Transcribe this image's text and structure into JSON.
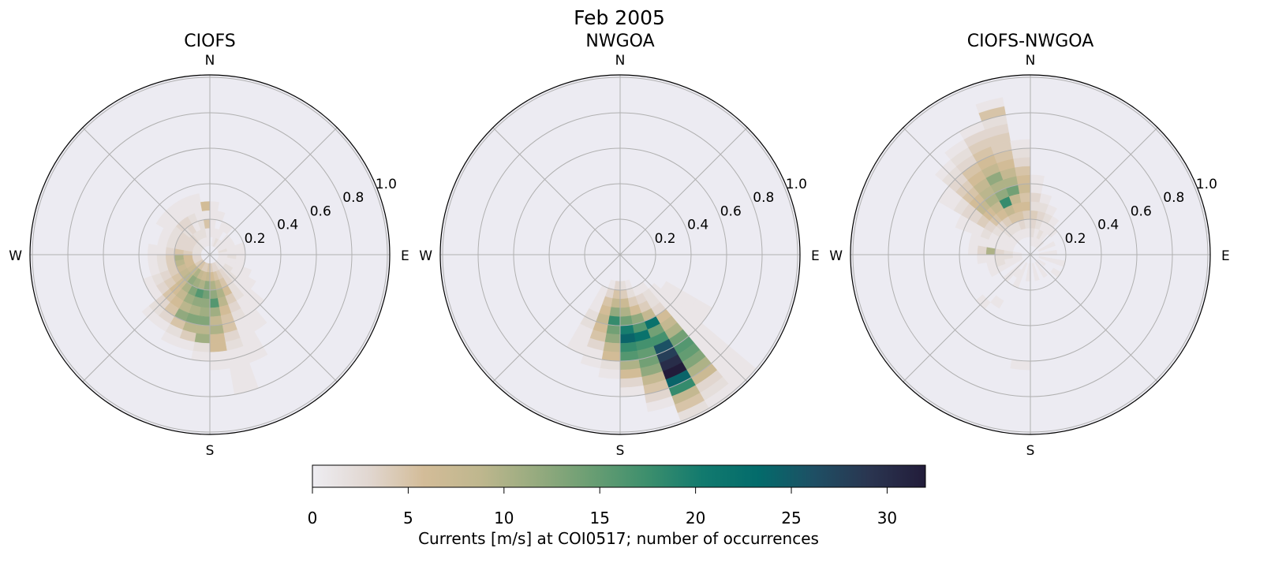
{
  "chart_data": {
    "type": "heatmap",
    "subtype": "polar-histogram",
    "title": "Feb 2005",
    "direction_bin_deg": 10,
    "speed_bin": 0.05,
    "rlim": [
      0,
      1.01
    ],
    "rticks": [
      "0.2",
      "0.4",
      "0.6",
      "0.8",
      "1.0"
    ],
    "rtick_values": [
      0.2,
      0.4,
      0.6,
      0.8,
      1.0
    ],
    "compass_labels": {
      "N": "N",
      "E": "E",
      "S": "S",
      "W": "W"
    },
    "grid": true,
    "colorbar": {
      "label": "Currents [m/s] at COI0517; number of occurrences",
      "range": [
        0,
        32
      ],
      "ticks": [
        0,
        5,
        10,
        15,
        20,
        25,
        30
      ],
      "tick_labels": [
        "0",
        "5",
        "10",
        "15",
        "20",
        "25",
        "30"
      ],
      "colormap": [
        "#eeedf2",
        "#e1d7d1",
        "#d3bc98",
        "#bfb78e",
        "#97ab7f",
        "#6a9e73",
        "#3d8f6d",
        "#127a6e",
        "#036b6b",
        "#1e4f64",
        "#2a3550",
        "#221c3a"
      ]
    },
    "panels": [
      {
        "title": "CIOFS",
        "rows": [
          {
            "dir": 5,
            "counts": [
              0,
              0,
              1,
              1,
              1,
              1
            ]
          },
          {
            "dir": 15,
            "counts": [
              0,
              1,
              1,
              0,
              1
            ]
          },
          {
            "dir": 25,
            "counts": [
              0,
              2,
              1,
              1
            ]
          },
          {
            "dir": 35,
            "counts": [
              0,
              1,
              0,
              1
            ]
          },
          {
            "dir": 45,
            "counts": [
              0,
              1,
              1
            ]
          },
          {
            "dir": 55,
            "counts": [
              0,
              1,
              1
            ]
          },
          {
            "dir": 65,
            "counts": [
              0,
              1,
              1
            ]
          },
          {
            "dir": 75,
            "counts": [
              0,
              2,
              1,
              1
            ]
          },
          {
            "dir": 85,
            "counts": [
              0,
              1,
              1,
              1
            ]
          },
          {
            "dir": 95,
            "counts": [
              0,
              1,
              2,
              1
            ]
          },
          {
            "dir": 105,
            "counts": [
              0,
              1,
              1,
              1
            ]
          },
          {
            "dir": 115,
            "counts": [
              0,
              1,
              1,
              1,
              1
            ]
          },
          {
            "dir": 125,
            "counts": [
              0,
              1,
              2,
              1,
              1,
              1
            ]
          },
          {
            "dir": 135,
            "counts": [
              0,
              1,
              2,
              2,
              1,
              1,
              1,
              1
            ]
          },
          {
            "dir": 145,
            "counts": [
              0,
              2,
              3,
              3,
              2,
              2,
              1,
              1,
              1,
              1
            ]
          },
          {
            "dir": 155,
            "counts": [
              0,
              3,
              4,
              5,
              6,
              4,
              3,
              2,
              1,
              1,
              1,
              1,
              1
            ]
          },
          {
            "dir": 165,
            "counts": [
              0,
              3,
              5,
              8,
              10,
              9,
              6,
              5,
              5,
              3,
              2,
              1,
              1,
              1,
              1,
              1
            ]
          },
          {
            "dir": 175,
            "counts": [
              0,
              4,
              6,
              10,
              12,
              16,
              11,
              8,
              10,
              6,
              6,
              1,
              1
            ]
          },
          {
            "dir": 185,
            "counts": [
              0,
              5,
              8,
              12,
              14,
              12,
              11,
              13,
              9,
              11,
              2,
              1
            ]
          },
          {
            "dir": 195,
            "counts": [
              0,
              4,
              7,
              10,
              16,
              12,
              10,
              13,
              9,
              4,
              1
            ]
          },
          {
            "dir": 205,
            "counts": [
              0,
              4,
              8,
              11,
              13,
              11,
              9,
              12,
              5,
              2,
              1
            ]
          },
          {
            "dir": 215,
            "counts": [
              0,
              5,
              10,
              12,
              10,
              8,
              6,
              5,
              3,
              1
            ]
          },
          {
            "dir": 225,
            "counts": [
              0,
              5,
              8,
              9,
              7,
              6,
              5,
              3,
              2,
              1
            ]
          },
          {
            "dir": 235,
            "counts": [
              0,
              4,
              7,
              8,
              5,
              4,
              3,
              1
            ]
          },
          {
            "dir": 245,
            "counts": [
              0,
              3,
              6,
              7,
              4,
              3,
              2,
              1
            ]
          },
          {
            "dir": 255,
            "counts": [
              0,
              3,
              6,
              9,
              4,
              2,
              1
            ]
          },
          {
            "dir": 265,
            "counts": [
              0,
              3,
              6,
              10,
              4,
              2,
              1
            ]
          },
          {
            "dir": 275,
            "counts": [
              0,
              2,
              4,
              5,
              3,
              1,
              1
            ]
          },
          {
            "dir": 285,
            "counts": [
              0,
              2,
              3,
              3,
              2,
              1
            ]
          },
          {
            "dir": 295,
            "counts": [
              0,
              2,
              3,
              3,
              2,
              1
            ]
          },
          {
            "dir": 305,
            "counts": [
              0,
              2,
              3,
              3,
              2,
              1,
              1
            ]
          },
          {
            "dir": 315,
            "counts": [
              0,
              2,
              3,
              2,
              3,
              1,
              1
            ]
          },
          {
            "dir": 325,
            "counts": [
              0,
              1,
              2,
              3,
              3,
              1,
              1
            ]
          },
          {
            "dir": 335,
            "counts": [
              0,
              1,
              2,
              1,
              2,
              1,
              1
            ]
          },
          {
            "dir": 345,
            "counts": [
              0,
              1,
              2,
              2,
              1,
              1,
              1
            ]
          },
          {
            "dir": 355,
            "counts": [
              0,
              1,
              1,
              5,
              1,
              6
            ]
          }
        ]
      },
      {
        "title": "NWGOA",
        "rows": [
          {
            "dir": 125,
            "counts": [
              0,
              0,
              0,
              0,
              0,
              0,
              1,
              1,
              1,
              1,
              1,
              1
            ]
          },
          {
            "dir": 135,
            "counts": [
              0,
              0,
              0,
              0,
              0,
              1,
              1,
              1,
              1,
              1,
              1,
              1,
              1,
              1,
              1,
              1,
              1,
              1,
              1,
              1
            ]
          },
          {
            "dir": 145,
            "counts": [
              0,
              0,
              0,
              0,
              1,
              2,
              2,
              3,
              6,
              8,
              10,
              14,
              16,
              15,
              13,
              10,
              7,
              3,
              2,
              1,
              1
            ]
          },
          {
            "dir": 155,
            "counts": [
              0,
              0,
              0,
              0,
              1,
              3,
              4,
              8,
              22,
              14,
              17,
              26,
              28,
              30,
              32,
              24,
              18,
              8,
              5,
              2,
              1
            ]
          },
          {
            "dir": 165,
            "counts": [
              0,
              0,
              0,
              1,
              2,
              4,
              6,
              12,
              16,
              22,
              17,
              15,
              14,
              12,
              8,
              5,
              3,
              1
            ]
          },
          {
            "dir": 175,
            "counts": [
              0,
              0,
              0,
              2,
              4,
              7,
              10,
              14,
              20,
              24,
              18,
              16,
              10,
              6,
              3,
              1
            ]
          },
          {
            "dir": 185,
            "counts": [
              0,
              0,
              0,
              3,
              5,
              8,
              12,
              18,
              14,
              12,
              8,
              6,
              2,
              1
            ]
          },
          {
            "dir": 195,
            "counts": [
              0,
              0,
              0,
              1,
              3,
              5,
              6,
              8,
              6,
              5,
              3,
              1,
              1
            ]
          },
          {
            "dir": 205,
            "counts": [
              0,
              0,
              0,
              0,
              1,
              1,
              1,
              2,
              2,
              1,
              1,
              1
            ]
          }
        ]
      },
      {
        "title": "CIOFS-NWGOA",
        "rows": [
          {
            "dir": 5,
            "counts": [
              0,
              1,
              2,
              3,
              4,
              2,
              3,
              1,
              1
            ]
          },
          {
            "dir": 15,
            "counts": [
              0,
              1,
              1,
              2,
              3,
              2,
              1
            ]
          },
          {
            "dir": 25,
            "counts": [
              0,
              1,
              2,
              1,
              2,
              1
            ]
          },
          {
            "dir": 35,
            "counts": [
              0,
              1,
              1,
              1,
              1
            ]
          },
          {
            "dir": 45,
            "counts": [
              0,
              1,
              0,
              1
            ]
          },
          {
            "dir": 65,
            "counts": [
              0,
              1,
              1
            ]
          },
          {
            "dir": 85,
            "counts": [
              0,
              1,
              1
            ]
          },
          {
            "dir": 105,
            "counts": [
              0,
              1,
              1,
              1
            ]
          },
          {
            "dir": 125,
            "counts": [
              0,
              1,
              0,
              1
            ]
          },
          {
            "dir": 145,
            "counts": [
              0,
              1,
              1
            ]
          },
          {
            "dir": 165,
            "counts": [
              0,
              1,
              1
            ]
          },
          {
            "dir": 185,
            "counts": [
              0,
              1,
              1,
              0,
              0,
              0,
              0,
              0,
              0,
              0,
              0,
              0,
              1
            ]
          },
          {
            "dir": 205,
            "counts": [
              0,
              1,
              1,
              1
            ]
          },
          {
            "dir": 215,
            "counts": [
              0,
              0,
              1,
              0,
              0,
              0,
              1
            ]
          },
          {
            "dir": 225,
            "counts": [
              0,
              1,
              1,
              1,
              0,
              0,
              0,
              1
            ]
          },
          {
            "dir": 245,
            "counts": [
              0,
              1,
              1,
              1,
              1
            ]
          },
          {
            "dir": 255,
            "counts": [
              0,
              1,
              1,
              2,
              1
            ]
          },
          {
            "dir": 265,
            "counts": [
              0,
              1,
              2,
              2,
              1,
              1
            ]
          },
          {
            "dir": 275,
            "counts": [
              0,
              1,
              2,
              3,
              10,
              3,
              1
            ]
          },
          {
            "dir": 285,
            "counts": [
              0,
              0,
              1,
              1,
              1,
              1,
              1
            ]
          },
          {
            "dir": 295,
            "counts": [
              0,
              0,
              1,
              1,
              1,
              2,
              1,
              1,
              1
            ]
          },
          {
            "dir": 305,
            "counts": [
              0,
              0,
              1,
              1,
              2,
              3,
              4,
              3,
              3,
              2,
              1,
              1
            ]
          },
          {
            "dir": 315,
            "counts": [
              0,
              0,
              1,
              2,
              3,
              5,
              6,
              8,
              6,
              5,
              4,
              3,
              2,
              1
            ]
          },
          {
            "dir": 325,
            "counts": [
              0,
              0,
              1,
              2,
              4,
              6,
              8,
              10,
              9,
              8,
              6,
              5,
              3,
              2,
              1
            ]
          },
          {
            "dir": 335,
            "counts": [
              0,
              0,
              1,
              2,
              5,
              8,
              18,
              12,
              10,
              12,
              8,
              6,
              5,
              4,
              3,
              1
            ]
          },
          {
            "dir": 345,
            "counts": [
              0,
              0,
              1,
              3,
              5,
              6,
              8,
              14,
              10,
              8,
              6,
              5,
              4,
              4,
              3,
              2,
              5,
              1
            ]
          },
          {
            "dir": 355,
            "counts": [
              0,
              0,
              1,
              2,
              4,
              6,
              5,
              7,
              6,
              5,
              3,
              2,
              1
            ]
          }
        ]
      }
    ]
  }
}
